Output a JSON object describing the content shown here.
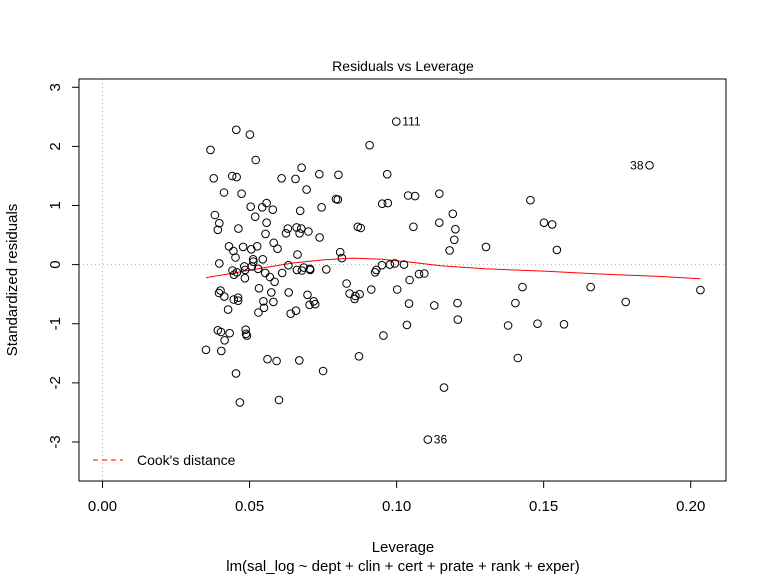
{
  "chart_data": {
    "type": "scatter",
    "title": "Residuals vs Leverage",
    "xlabel": "Leverage",
    "subtitle": "lm(sal_log ~ dept + clin + cert + prate + rank + exper)",
    "ylabel": "Standardized residuals",
    "xlim": [
      -0.008,
      0.212
    ],
    "ylim": [
      -3.66,
      3.14
    ],
    "x_ticks": [
      0.0,
      0.05,
      0.1,
      0.15,
      0.2
    ],
    "x_tick_labels": [
      "0.00",
      "0.05",
      "0.10",
      "0.15",
      "0.20"
    ],
    "y_ticks": [
      -3,
      -2,
      -1,
      0,
      1,
      2,
      3
    ],
    "y_tick_labels": [
      "-3",
      "-2",
      "-1",
      "0",
      "1",
      "2",
      "3"
    ],
    "grid": false,
    "reference_lines": {
      "h": 0,
      "v": 0,
      "style": "dotted",
      "color": "#b3b3b3"
    },
    "legend": {
      "position": "bottom-left",
      "entries": [
        {
          "label": "Cook's distance",
          "color": "#ff0000",
          "style": "dashed"
        }
      ]
    },
    "point_labels": [
      {
        "label": "111",
        "x": 0.0999,
        "y": 2.42
      },
      {
        "label": "38",
        "x": 0.186,
        "y": 1.68
      },
      {
        "label": "36",
        "x": 0.1106,
        "y": -2.96
      }
    ],
    "smooth_color": "#ff0000",
    "smooth": [
      [
        0.0352,
        -0.22
      ],
      [
        0.045,
        -0.14
      ],
      [
        0.055,
        -0.05
      ],
      [
        0.065,
        0.03
      ],
      [
        0.075,
        0.08
      ],
      [
        0.085,
        0.11
      ],
      [
        0.095,
        0.09
      ],
      [
        0.105,
        0.04
      ],
      [
        0.115,
        -0.02
      ],
      [
        0.13,
        -0.07
      ],
      [
        0.15,
        -0.11
      ],
      [
        0.17,
        -0.16
      ],
      [
        0.19,
        -0.2
      ],
      [
        0.2033,
        -0.24
      ]
    ],
    "points": [
      [
        0.0352,
        -1.44
      ],
      [
        0.0367,
        1.94
      ],
      [
        0.0378,
        1.46
      ],
      [
        0.0382,
        0.84
      ],
      [
        0.0392,
        0.59
      ],
      [
        0.0397,
        0.7
      ],
      [
        0.0397,
        0.02
      ],
      [
        0.0396,
        -0.48
      ],
      [
        0.0401,
        -0.44
      ],
      [
        0.0392,
        -1.11
      ],
      [
        0.0403,
        -1.14
      ],
      [
        0.0404,
        -1.46
      ],
      [
        0.0413,
        1.22
      ],
      [
        0.0414,
        -0.54
      ],
      [
        0.0415,
        -1.28
      ],
      [
        0.0427,
        -0.76
      ],
      [
        0.043,
        0.31
      ],
      [
        0.0432,
        -1.16
      ],
      [
        0.0441,
        1.5
      ],
      [
        0.0442,
        -0.1
      ],
      [
        0.0445,
        0.23
      ],
      [
        0.0447,
        -0.17
      ],
      [
        0.0446,
        -0.59
      ],
      [
        0.0455,
        2.28
      ],
      [
        0.0456,
        1.48
      ],
      [
        0.0452,
        0.12
      ],
      [
        0.0457,
        -0.13
      ],
      [
        0.0454,
        -1.84
      ],
      [
        0.0462,
        0.61
      ],
      [
        0.0461,
        -0.56
      ],
      [
        0.0461,
        -0.61
      ],
      [
        0.0467,
        -2.33
      ],
      [
        0.0473,
        1.2
      ],
      [
        0.0478,
        0.3
      ],
      [
        0.0482,
        -0.03
      ],
      [
        0.0485,
        -0.09
      ],
      [
        0.0484,
        -0.23
      ],
      [
        0.0487,
        -1.1
      ],
      [
        0.0488,
        -1.17
      ],
      [
        0.0491,
        -1.2
      ],
      [
        0.0501,
        2.2
      ],
      [
        0.0504,
        0.98
      ],
      [
        0.0506,
        0.26
      ],
      [
        0.0512,
        0.09
      ],
      [
        0.0513,
        0.05
      ],
      [
        0.0508,
        -0.03
      ],
      [
        0.0521,
        1.77
      ],
      [
        0.0519,
        0.81
      ],
      [
        0.0526,
        0.31
      ],
      [
        0.0529,
        -0.07
      ],
      [
        0.0532,
        -0.4
      ],
      [
        0.053,
        -0.81
      ],
      [
        0.0543,
        0.97
      ],
      [
        0.0545,
        0.09
      ],
      [
        0.0547,
        -0.62
      ],
      [
        0.0549,
        -0.73
      ],
      [
        0.0554,
        0.52
      ],
      [
        0.0558,
        1.04
      ],
      [
        0.0558,
        0.71
      ],
      [
        0.0553,
        -0.14
      ],
      [
        0.0561,
        -1.6
      ],
      [
        0.0569,
        -0.21
      ],
      [
        0.0574,
        -0.47
      ],
      [
        0.0579,
        0.93
      ],
      [
        0.0582,
        0.37
      ],
      [
        0.0585,
        -0.29
      ],
      [
        0.0581,
        -0.63
      ],
      [
        0.0592,
        -1.63
      ],
      [
        0.0595,
        0.27
      ],
      [
        0.06,
        -2.29
      ],
      [
        0.0609,
        1.46
      ],
      [
        0.0611,
        -0.14
      ],
      [
        0.0624,
        0.53
      ],
      [
        0.063,
        0.61
      ],
      [
        0.0632,
        -0.01
      ],
      [
        0.0633,
        -0.47
      ],
      [
        0.064,
        -0.83
      ],
      [
        0.0656,
        1.45
      ],
      [
        0.066,
        0.63
      ],
      [
        0.0661,
        -0.09
      ],
      [
        0.0658,
        -0.78
      ],
      [
        0.0663,
        0.17
      ],
      [
        0.067,
        0.53
      ],
      [
        0.0677,
        1.64
      ],
      [
        0.0672,
        0.91
      ],
      [
        0.0676,
        0.61
      ],
      [
        0.0678,
        -0.1
      ],
      [
        0.0684,
        -0.05
      ],
      [
        0.0669,
        -1.62
      ],
      [
        0.0694,
        1.27
      ],
      [
        0.07,
        0.56
      ],
      [
        0.0697,
        -0.51
      ],
      [
        0.0705,
        -0.07
      ],
      [
        0.0706,
        -0.09
      ],
      [
        0.0704,
        -0.68
      ],
      [
        0.0718,
        -0.62
      ],
      [
        0.0723,
        -0.67
      ],
      [
        0.0737,
        1.53
      ],
      [
        0.0738,
        0.46
      ],
      [
        0.0745,
        0.97
      ],
      [
        0.075,
        -1.8
      ],
      [
        0.0761,
        -0.08
      ],
      [
        0.0794,
        1.11
      ],
      [
        0.08,
        1.1
      ],
      [
        0.0802,
        1.52
      ],
      [
        0.0808,
        0.21
      ],
      [
        0.0814,
        0.11
      ],
      [
        0.083,
        -0.32
      ],
      [
        0.084,
        -0.49
      ],
      [
        0.0857,
        -0.58
      ],
      [
        0.086,
        -0.53
      ],
      [
        0.0868,
        0.64
      ],
      [
        0.0878,
        0.62
      ],
      [
        0.0872,
        -1.55
      ],
      [
        0.0874,
        -0.5
      ],
      [
        0.0908,
        2.02
      ],
      [
        0.0914,
        -0.42
      ],
      [
        0.0927,
        -0.13
      ],
      [
        0.0931,
        -0.09
      ],
      [
        0.0951,
        1.03
      ],
      [
        0.095,
        -0.01
      ],
      [
        0.0955,
        -1.2
      ],
      [
        0.0968,
        1.53
      ],
      [
        0.097,
        1.04
      ],
      [
        0.0977,
        0.0
      ],
      [
        0.0994,
        0.02
      ],
      [
        0.1002,
        -0.42
      ],
      [
        0.1025,
        0.0
      ],
      [
        0.1035,
        -1.02
      ],
      [
        0.1039,
        1.17
      ],
      [
        0.1042,
        -0.66
      ],
      [
        0.1044,
        -0.26
      ],
      [
        0.1057,
        0.64
      ],
      [
        0.1063,
        1.16
      ],
      [
        0.1076,
        -0.16
      ],
      [
        0.1094,
        -0.15
      ],
      [
        0.1128,
        -0.69
      ],
      [
        0.1145,
        1.2
      ],
      [
        0.1145,
        0.71
      ],
      [
        0.1161,
        -2.08
      ],
      [
        0.118,
        0.24
      ],
      [
        0.1191,
        0.86
      ],
      [
        0.1196,
        0.42
      ],
      [
        0.12,
        0.6
      ],
      [
        0.1207,
        -0.65
      ],
      [
        0.1208,
        -0.93
      ],
      [
        0.1304,
        0.3
      ],
      [
        0.1379,
        -1.03
      ],
      [
        0.1404,
        -0.65
      ],
      [
        0.1412,
        -1.58
      ],
      [
        0.1428,
        -0.38
      ],
      [
        0.1455,
        1.09
      ],
      [
        0.1479,
        -1.0
      ],
      [
        0.1501,
        0.71
      ],
      [
        0.1529,
        0.68
      ],
      [
        0.1545,
        0.25
      ],
      [
        0.1569,
        -1.01
      ],
      [
        0.166,
        -0.38
      ],
      [
        0.1779,
        -0.63
      ],
      [
        0.2033,
        -0.43
      ]
    ]
  }
}
